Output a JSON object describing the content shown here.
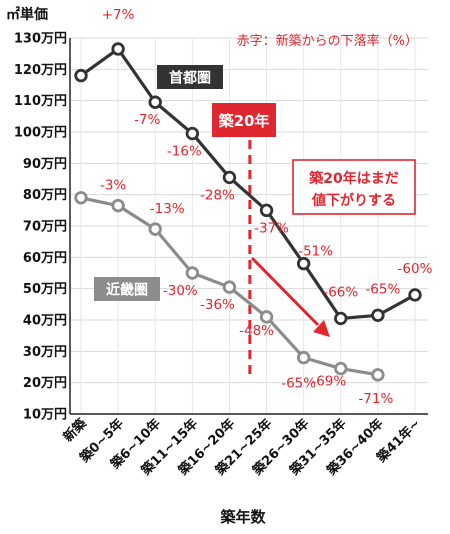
{
  "chart_data": {
    "type": "line",
    "ylabel": "㎡単価",
    "xlabel": "築年数",
    "note": "赤字：新築からの下落率（%）",
    "y_ticks": [
      "10万円",
      "20万円",
      "30万円",
      "40万円",
      "50万円",
      "60万円",
      "70万円",
      "80万円",
      "90万円",
      "100万円",
      "110万円",
      "120万円",
      "130万円"
    ],
    "ylim": [
      10,
      130
    ],
    "categories": [
      "新築",
      "築0~5年",
      "築6~10年",
      "築11~15年",
      "築16~20年",
      "築21~25年",
      "築26~30年",
      "築31~35年",
      "築36~40年",
      "築41年~"
    ],
    "series": [
      {
        "name": "首都圏",
        "color": "#333333",
        "values": [
          118,
          126.5,
          109.5,
          99.5,
          85.5,
          75,
          58,
          40.5,
          41.5,
          48
        ],
        "labels": [
          "",
          "+7%",
          "-7%",
          "-16%",
          "-28%",
          "-37%",
          "-51%",
          "-66%",
          "-65%",
          "-60%"
        ]
      },
      {
        "name": "近畿圏",
        "color": "#8c8c8c",
        "values": [
          79,
          76.5,
          69,
          55,
          50.5,
          41,
          28,
          24.5,
          22.5,
          null
        ],
        "labels": [
          "",
          "-3%",
          "-13%",
          "-30%",
          "-36%",
          "-48%",
          "-65%",
          "-69%",
          "-71%",
          ""
        ]
      }
    ],
    "annotations": {
      "marker_label": "築20年",
      "callout_line1": "築20年はまだ",
      "callout_line2": "値下がりする"
    },
    "accent_color": "#e0262f"
  }
}
